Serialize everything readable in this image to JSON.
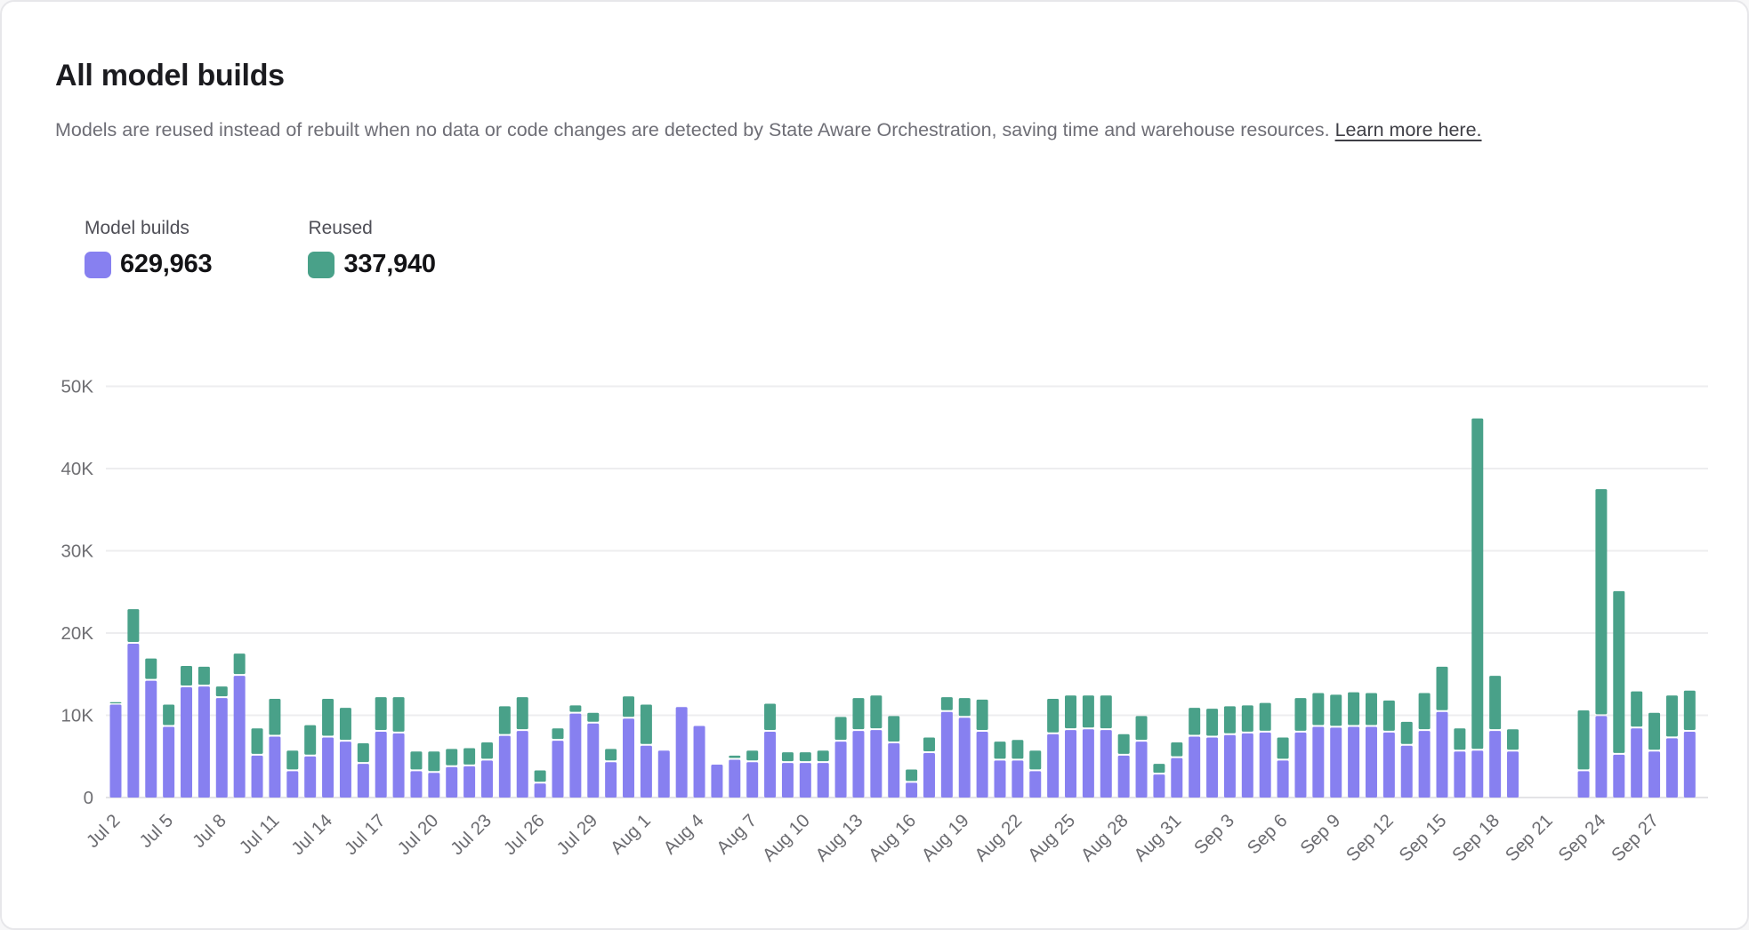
{
  "header": {
    "title": "All model builds",
    "subtitle": "Models are reused instead of rebuilt when no data or code changes are detected by State Aware Orchestration, saving time and warehouse resources.",
    "link_text": "Learn more here."
  },
  "legend": {
    "model_builds": {
      "label": "Model builds",
      "value": "629,963",
      "color": "#8780f0"
    },
    "reused": {
      "label": "Reused",
      "value": "337,940",
      "color": "#49a189"
    }
  },
  "chart_data": {
    "type": "bar",
    "stacked": true,
    "title": "All model builds",
    "xlabel": "",
    "ylabel": "",
    "grid": true,
    "legend_position": "top-left",
    "ylim": [
      0,
      50000
    ],
    "ytick_values": [
      0,
      10000,
      20000,
      30000,
      40000,
      50000
    ],
    "yticks": [
      "0",
      "10K",
      "20K",
      "30K",
      "40K",
      "50K"
    ],
    "xtick_every": 3,
    "x": [
      "Jul 2",
      "Jul 3",
      "Jul 4",
      "Jul 5",
      "Jul 6",
      "Jul 7",
      "Jul 8",
      "Jul 9",
      "Jul 10",
      "Jul 11",
      "Jul 12",
      "Jul 13",
      "Jul 14",
      "Jul 15",
      "Jul 16",
      "Jul 17",
      "Jul 18",
      "Jul 19",
      "Jul 20",
      "Jul 21",
      "Jul 22",
      "Jul 23",
      "Jul 24",
      "Jul 25",
      "Jul 26",
      "Jul 27",
      "Jul 28",
      "Jul 29",
      "Jul 30",
      "Jul 31",
      "Aug 1",
      "Aug 2",
      "Aug 3",
      "Aug 4",
      "Aug 5",
      "Aug 6",
      "Aug 7",
      "Aug 8",
      "Aug 9",
      "Aug 10",
      "Aug 11",
      "Aug 12",
      "Aug 13",
      "Aug 14",
      "Aug 15",
      "Aug 16",
      "Aug 17",
      "Aug 18",
      "Aug 19",
      "Aug 20",
      "Aug 21",
      "Aug 22",
      "Aug 23",
      "Aug 24",
      "Aug 25",
      "Aug 26",
      "Aug 27",
      "Aug 28",
      "Aug 29",
      "Aug 30",
      "Aug 31",
      "Sep 1",
      "Sep 2",
      "Sep 3",
      "Sep 4",
      "Sep 5",
      "Sep 6",
      "Sep 7",
      "Sep 8",
      "Sep 9",
      "Sep 10",
      "Sep 11",
      "Sep 12",
      "Sep 13",
      "Sep 14",
      "Sep 15",
      "Sep 16",
      "Sep 17",
      "Sep 18",
      "Sep 19",
      "Sep 20",
      "Sep 21",
      "Sep 22",
      "Sep 23",
      "Sep 24",
      "Sep 25",
      "Sep 26",
      "Sep 27",
      "Sep 28",
      "Sep 29"
    ],
    "series": [
      {
        "name": "Model builds",
        "color": "#8780f0",
        "total": 629963,
        "values": [
          11300,
          18700,
          14200,
          8600,
          13400,
          13500,
          12100,
          14800,
          5100,
          7400,
          3200,
          5000,
          7300,
          6800,
          4100,
          8000,
          7800,
          3200,
          3000,
          3700,
          3800,
          4500,
          7500,
          8100,
          1700,
          6900,
          10200,
          9000,
          4300,
          9600,
          6300,
          5700,
          11000,
          8700,
          4000,
          4600,
          4300,
          8000,
          4200,
          4200,
          4200,
          6800,
          8100,
          8200,
          6600,
          1800,
          5400,
          10400,
          9700,
          8000,
          4500,
          4500,
          3200,
          7700,
          8200,
          8300,
          8200,
          5100,
          6800,
          2800,
          4800,
          7400,
          7300,
          7600,
          7800,
          7900,
          4500,
          7900,
          8600,
          8500,
          8600,
          8600,
          7900,
          6300,
          8100,
          10400,
          5600,
          5700,
          8100,
          5600,
          0,
          0,
          0,
          3200,
          9900,
          5200,
          8400,
          5600,
          7200,
          8000
        ]
      },
      {
        "name": "Reused",
        "color": "#49a189",
        "total": 337940,
        "values": [
          300,
          4200,
          2700,
          2700,
          2600,
          2400,
          1400,
          2700,
          3300,
          4600,
          2500,
          3800,
          4700,
          4100,
          2500,
          4200,
          4400,
          2400,
          2600,
          2200,
          2200,
          2200,
          3600,
          4100,
          1600,
          1500,
          1000,
          1300,
          1600,
          2700,
          5000,
          0,
          0,
          0,
          0,
          500,
          1400,
          3400,
          1300,
          1300,
          1500,
          3000,
          4000,
          4200,
          3300,
          1600,
          1900,
          1800,
          2400,
          3900,
          2300,
          2500,
          2500,
          4300,
          4200,
          4100,
          4200,
          2600,
          3100,
          1300,
          1900,
          3500,
          3500,
          3500,
          3400,
          3600,
          2800,
          4200,
          4100,
          4000,
          4200,
          4100,
          3900,
          2900,
          4600,
          5500,
          2800,
          40400,
          6700,
          2700,
          0,
          0,
          0,
          7400,
          27600,
          19900,
          4500,
          4700,
          5200,
          5000
        ]
      }
    ]
  }
}
